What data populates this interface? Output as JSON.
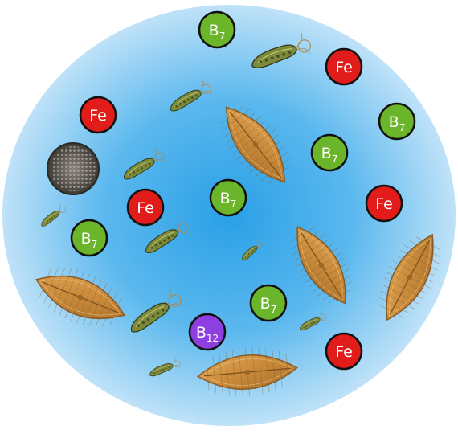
{
  "palette": {
    "background_center": "#2aa0e6",
    "background_mid": "#5bb8ee",
    "background_edge": "#bfe2f8",
    "iron_fill": "#e21b1b",
    "vitamin_b7_fill": "#6bb52a",
    "vitamin_b12_fill": "#8d3fe0",
    "token_border": "#111111",
    "diatom_fill": "#c98a3a",
    "diatom_edge": "#8a5a22",
    "flagellate_body": "#7e8a3a",
    "flagellate_dark": "#2f3a1a",
    "centric_diatom": "#5b5650"
  },
  "tokens": [
    {
      "kind": "iron",
      "label": "Fe",
      "sub": ""
    },
    {
      "kind": "iron",
      "label": "Fe",
      "sub": ""
    },
    {
      "kind": "iron",
      "label": "Fe",
      "sub": ""
    },
    {
      "kind": "iron",
      "label": "Fe",
      "sub": ""
    },
    {
      "kind": "iron",
      "label": "Fe",
      "sub": ""
    },
    {
      "kind": "b7",
      "label": "B",
      "sub": "7"
    },
    {
      "kind": "b7",
      "label": "B",
      "sub": "7"
    },
    {
      "kind": "b7",
      "label": "B",
      "sub": "7"
    },
    {
      "kind": "b7",
      "label": "B",
      "sub": "7"
    },
    {
      "kind": "b7",
      "label": "B",
      "sub": "7"
    },
    {
      "kind": "b7",
      "label": "B",
      "sub": "7"
    },
    {
      "kind": "b12",
      "label": "B",
      "sub": "12"
    }
  ],
  "organisms": {
    "pennate_diatom": "pennate-diatom",
    "flagellate": "flagellate-alga",
    "centric_diatom": "centric-diatom"
  }
}
